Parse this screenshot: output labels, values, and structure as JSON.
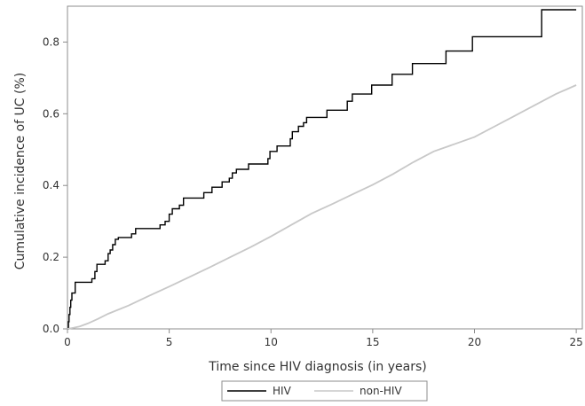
{
  "chart_data": {
    "type": "line",
    "title": "",
    "xlabel": "Time since HIV diagnosis (in years)",
    "ylabel": "Cumulative incidence of UC (%)",
    "xlim": [
      0,
      25.3
    ],
    "ylim": [
      0,
      0.9
    ],
    "x_ticks": [
      0,
      5,
      10,
      15,
      20,
      25
    ],
    "x_tick_labels": [
      "0",
      "5",
      "10",
      "15",
      "20",
      "25"
    ],
    "y_ticks": [
      0.0,
      0.2,
      0.4,
      0.6,
      0.8
    ],
    "y_tick_labels": [
      "0.0",
      "0.2",
      "0.4",
      "0.6",
      "0.8"
    ],
    "grid": false,
    "legend_position": "bottom-center",
    "series": [
      {
        "name": "HIV",
        "color": "#000000",
        "step": true,
        "points": [
          [
            0.0,
            0.0
          ],
          [
            0.05,
            0.02
          ],
          [
            0.08,
            0.04
          ],
          [
            0.12,
            0.06
          ],
          [
            0.16,
            0.08
          ],
          [
            0.22,
            0.1
          ],
          [
            0.38,
            0.13
          ],
          [
            1.2,
            0.14
          ],
          [
            1.35,
            0.16
          ],
          [
            1.45,
            0.18
          ],
          [
            1.85,
            0.19
          ],
          [
            2.0,
            0.21
          ],
          [
            2.1,
            0.22
          ],
          [
            2.22,
            0.235
          ],
          [
            2.35,
            0.25
          ],
          [
            2.5,
            0.255
          ],
          [
            3.15,
            0.265
          ],
          [
            3.35,
            0.28
          ],
          [
            4.55,
            0.29
          ],
          [
            4.8,
            0.3
          ],
          [
            5.0,
            0.32
          ],
          [
            5.15,
            0.335
          ],
          [
            5.5,
            0.345
          ],
          [
            5.7,
            0.365
          ],
          [
            6.7,
            0.38
          ],
          [
            7.1,
            0.395
          ],
          [
            7.6,
            0.41
          ],
          [
            7.95,
            0.42
          ],
          [
            8.1,
            0.435
          ],
          [
            8.3,
            0.445
          ],
          [
            8.9,
            0.46
          ],
          [
            9.85,
            0.475
          ],
          [
            9.95,
            0.495
          ],
          [
            10.3,
            0.51
          ],
          [
            10.95,
            0.53
          ],
          [
            11.05,
            0.55
          ],
          [
            11.35,
            0.565
          ],
          [
            11.6,
            0.575
          ],
          [
            11.75,
            0.59
          ],
          [
            12.75,
            0.61
          ],
          [
            13.75,
            0.635
          ],
          [
            14.0,
            0.655
          ],
          [
            14.95,
            0.68
          ],
          [
            15.95,
            0.71
          ],
          [
            16.95,
            0.74
          ],
          [
            18.6,
            0.775
          ],
          [
            19.9,
            0.815
          ],
          [
            23.3,
            0.89
          ],
          [
            25.0,
            0.89
          ]
        ]
      },
      {
        "name": "non-HIV",
        "color": "#c8c8c8",
        "step": false,
        "points": [
          [
            0.0,
            0.0
          ],
          [
            0.3,
            0.003
          ],
          [
            0.6,
            0.007
          ],
          [
            1.0,
            0.015
          ],
          [
            1.5,
            0.028
          ],
          [
            2.0,
            0.042
          ],
          [
            3.0,
            0.065
          ],
          [
            4.0,
            0.092
          ],
          [
            5.0,
            0.118
          ],
          [
            6.0,
            0.145
          ],
          [
            7.0,
            0.172
          ],
          [
            8.0,
            0.2
          ],
          [
            9.0,
            0.228
          ],
          [
            10.0,
            0.258
          ],
          [
            11.0,
            0.29
          ],
          [
            12.0,
            0.322
          ],
          [
            13.0,
            0.348
          ],
          [
            14.0,
            0.375
          ],
          [
            15.0,
            0.402
          ],
          [
            16.0,
            0.432
          ],
          [
            17.0,
            0.465
          ],
          [
            18.0,
            0.495
          ],
          [
            19.0,
            0.515
          ],
          [
            20.0,
            0.535
          ],
          [
            21.0,
            0.565
          ],
          [
            22.0,
            0.595
          ],
          [
            23.0,
            0.625
          ],
          [
            24.0,
            0.655
          ],
          [
            25.0,
            0.68
          ]
        ]
      }
    ]
  }
}
